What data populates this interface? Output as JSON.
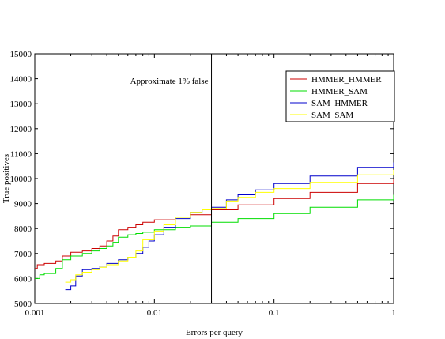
{
  "chart_data": {
    "type": "line",
    "title": "",
    "xlabel": "Errors per query",
    "ylabel": "True positives",
    "x_scale": "log",
    "xlim": [
      0.001,
      1
    ],
    "ylim": [
      5000,
      15000
    ],
    "x_ticks": [
      {
        "value": 0.001,
        "label": "0.001"
      },
      {
        "value": 0.01,
        "label": "0.01"
      },
      {
        "value": 0.1,
        "label": "0.1"
      },
      {
        "value": 1,
        "label": "1"
      }
    ],
    "y_ticks": [
      5000,
      6000,
      7000,
      8000,
      9000,
      10000,
      11000,
      12000,
      13000,
      14000,
      15000
    ],
    "grid": false,
    "legend_position": "top-right",
    "annotations": [
      {
        "type": "vline",
        "x": 0.03,
        "text": "Approximate 1% false"
      }
    ],
    "series": [
      {
        "name": "HMMER_HMMER",
        "color": "#cc0000",
        "x": [
          0.001,
          0.00105,
          0.0012,
          0.0015,
          0.0017,
          0.002,
          0.0025,
          0.003,
          0.0035,
          0.004,
          0.0045,
          0.005,
          0.006,
          0.007,
          0.008,
          0.01,
          0.015,
          0.02,
          0.03,
          0.05,
          0.1,
          0.2,
          0.5,
          1
        ],
        "y": [
          6400,
          6550,
          6600,
          6700,
          6900,
          7050,
          7100,
          7200,
          7300,
          7500,
          7700,
          7950,
          8050,
          8150,
          8250,
          8350,
          8450,
          8550,
          8750,
          8950,
          9200,
          9450,
          9800,
          10000
        ]
      },
      {
        "name": "HMMER_SAM",
        "color": "#00dd00",
        "x": [
          0.001,
          0.0011,
          0.0012,
          0.0015,
          0.0017,
          0.002,
          0.0025,
          0.003,
          0.0035,
          0.004,
          0.0045,
          0.005,
          0.006,
          0.007,
          0.008,
          0.01,
          0.015,
          0.02,
          0.03,
          0.05,
          0.1,
          0.2,
          0.5,
          1
        ],
        "y": [
          6000,
          6150,
          6200,
          6400,
          6750,
          6900,
          7000,
          7100,
          7200,
          7300,
          7450,
          7650,
          7750,
          7800,
          7850,
          7950,
          8050,
          8100,
          8250,
          8400,
          8600,
          8850,
          9150,
          9350
        ]
      },
      {
        "name": "SAM_HMMER",
        "color": "#0000cc",
        "x": [
          0.0018,
          0.002,
          0.0022,
          0.0025,
          0.003,
          0.0035,
          0.004,
          0.005,
          0.006,
          0.007,
          0.008,
          0.009,
          0.01,
          0.012,
          0.015,
          0.02,
          0.025,
          0.03,
          0.04,
          0.05,
          0.07,
          0.1,
          0.2,
          0.5,
          1
        ],
        "y": [
          5550,
          5700,
          6100,
          6350,
          6400,
          6500,
          6600,
          6750,
          6850,
          7000,
          7250,
          7500,
          7750,
          8050,
          8400,
          8650,
          8750,
          8850,
          9150,
          9350,
          9550,
          9800,
          10100,
          10450,
          10650
        ]
      },
      {
        "name": "SAM_SAM",
        "color": "#ffff00",
        "x": [
          0.0018,
          0.002,
          0.0022,
          0.0025,
          0.003,
          0.0035,
          0.004,
          0.005,
          0.006,
          0.007,
          0.008,
          0.01,
          0.012,
          0.015,
          0.02,
          0.025,
          0.03,
          0.04,
          0.05,
          0.07,
          0.1,
          0.2,
          0.5,
          1
        ],
        "y": [
          5850,
          5950,
          6150,
          6250,
          6350,
          6450,
          6550,
          6700,
          6850,
          7100,
          7550,
          7900,
          8150,
          8450,
          8650,
          8750,
          8800,
          9100,
          9250,
          9450,
          9600,
          9850,
          10150,
          10350
        ]
      }
    ]
  }
}
